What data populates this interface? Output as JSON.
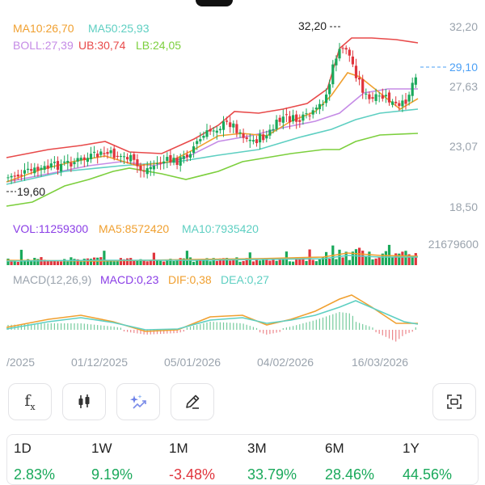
{
  "legend": {
    "ma10": "MA10:26,70",
    "ma50": "MA50:25,93",
    "boll": "BOLL:27,39",
    "ub": "UB:30,74",
    "lb": "LB:24,05"
  },
  "price_axis": {
    "ticks": [
      "32,20",
      "27,63",
      "23,07",
      "18,50"
    ],
    "current": "29,10",
    "high_label": "32,20",
    "low_label": "19,60"
  },
  "volume": {
    "vol": "VOL:11259300",
    "ma5": "MA5:8572420",
    "ma10": "MA10:7935420",
    "axis_max": "21679600"
  },
  "macd": {
    "params": "MACD(12,26,9)",
    "macd": "MACD:0,23",
    "dif": "DIF:0,38",
    "dea": "DEA:0,27"
  },
  "dates": [
    "/2025",
    "01/12/2025",
    "05/01/2026",
    "04/02/2026",
    "16/03/2026"
  ],
  "toolbar": {
    "icons": [
      "function-icon",
      "candlestick-icon",
      "ai-sparkle-icon",
      "pen-icon",
      "fullscreen-icon"
    ]
  },
  "performance": [
    {
      "period": "1D",
      "value": "2.83%",
      "dir": "up"
    },
    {
      "period": "1W",
      "value": "9.19%",
      "dir": "up"
    },
    {
      "period": "1M",
      "value": "-3.48%",
      "dir": "down"
    },
    {
      "period": "3M",
      "value": "33.79%",
      "dir": "up"
    },
    {
      "period": "6M",
      "value": "28.46%",
      "dir": "up"
    },
    {
      "period": "1Y",
      "value": "44.56%",
      "dir": "up"
    }
  ],
  "colors": {
    "up": "#1aa95b",
    "down": "#e0353d",
    "ma10": "#f0a030",
    "ma50": "#5ecfc2",
    "boll": "#c58be6",
    "ub": "#e84a4a",
    "lb": "#7ccf3d",
    "macd_purple": "#8a3de6",
    "current_price": "#4a9ff5",
    "axis_text": "#9aa3ad"
  }
}
